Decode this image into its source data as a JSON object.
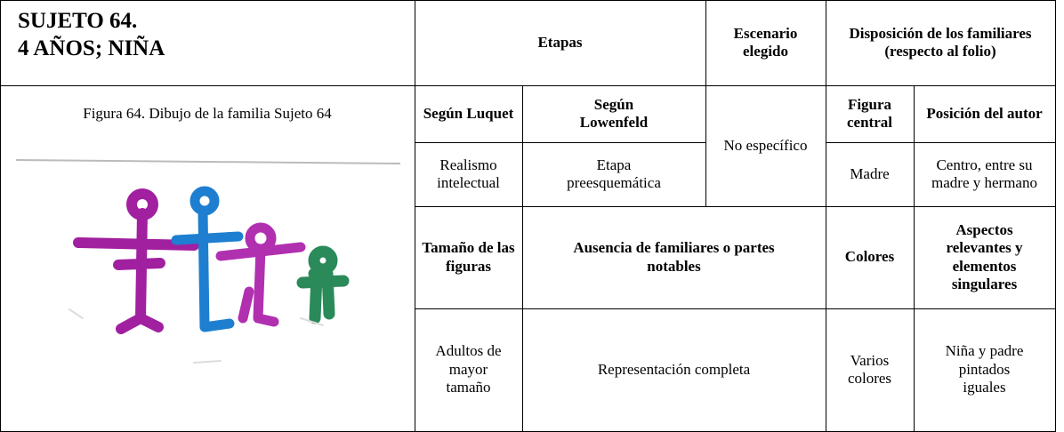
{
  "subject": {
    "title": [
      "SUJETO 64.",
      "4 AÑOS; NIÑA"
    ],
    "figure_caption": "Figura 64. Dibujo de la familia Sujeto 64"
  },
  "table": {
    "header": [
      "Etapas",
      "Escenario elegido",
      "Disposición de los familiares (respecto al folio)"
    ],
    "subheader": [
      "Según Luquet",
      "Según Lowenfeld",
      "Figura central",
      "Posición del autor"
    ],
    "row1": [
      "Realismo intelectual",
      "Etapa preesquemática",
      "No específico",
      "Madre",
      "Centro, entre su madre y hermano"
    ],
    "subheader2": [
      "Tamaño de las figuras",
      "Ausencia de familiares o partes notables",
      "Colores",
      "Aspectos relevantes y elementos singulares"
    ],
    "row2": [
      "Adultos de mayor tamaño",
      "Representación completa",
      "Varios colores",
      "Niña y padre pintados iguales"
    ]
  }
}
